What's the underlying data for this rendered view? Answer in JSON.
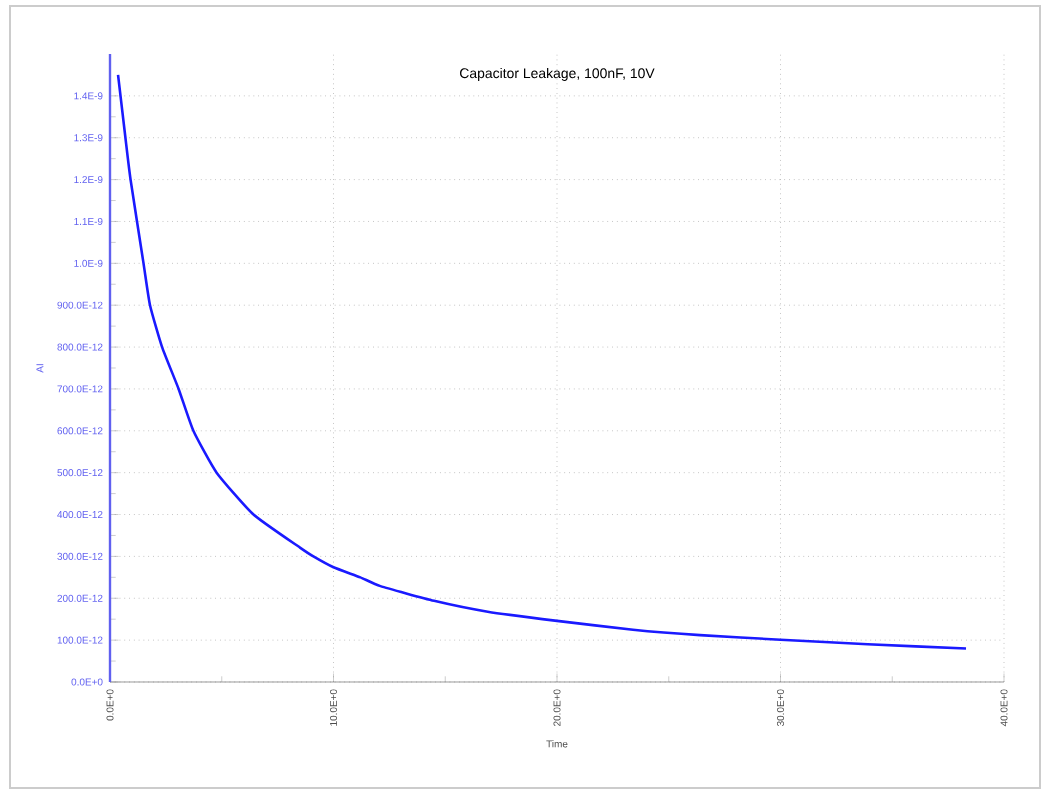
{
  "chart_data": {
    "type": "line",
    "title": "Capacitor Leakage, 100nF, 10V",
    "xlabel": "Time",
    "ylabel": "AI",
    "x": [
      0.36,
      0.69,
      0.92,
      1.5,
      1.79,
      2.33,
      3.07,
      3.73,
      4.77,
      6.42,
      8.5,
      9.1,
      10,
      11.2,
      12.1,
      14.5,
      16.9,
      20,
      23.4,
      26.4,
      30,
      33.9,
      38.3
    ],
    "series": [
      {
        "color": "#1a1aff",
        "values": [
          1.45e-09,
          1.3e-09,
          1.2e-09,
          1e-09,
          9e-10,
          8e-10,
          7e-10,
          6e-10,
          5e-10,
          4e-10,
          3.21e-10,
          3e-10,
          2.74e-10,
          2.5e-10,
          2.29e-10,
          1.94e-10,
          1.68e-10,
          1.46e-10,
          1.25e-10,
          1.12e-10,
          1.01e-10,
          9e-11,
          8e-11
        ]
      }
    ],
    "xlim": [
      0,
      40
    ],
    "ylim": [
      0,
      1.5e-09
    ],
    "xticks": [
      {
        "value": 0,
        "label": "0.0E+0"
      },
      {
        "value": 10,
        "label": "10.0E+0"
      },
      {
        "value": 20,
        "label": "20.0E+0"
      },
      {
        "value": 30,
        "label": "30.0E+0"
      },
      {
        "value": 40,
        "label": "40.0E+0"
      }
    ],
    "yticks": [
      {
        "value": 0,
        "label": "0.0E+0"
      },
      {
        "value": 1e-10,
        "label": "100.0E-12"
      },
      {
        "value": 2e-10,
        "label": "200.0E-12"
      },
      {
        "value": 3e-10,
        "label": "300.0E-12"
      },
      {
        "value": 4e-10,
        "label": "400.0E-12"
      },
      {
        "value": 5e-10,
        "label": "500.0E-12"
      },
      {
        "value": 6e-10,
        "label": "600.0E-12"
      },
      {
        "value": 7e-10,
        "label": "700.0E-12"
      },
      {
        "value": 8e-10,
        "label": "800.0E-12"
      },
      {
        "value": 9e-10,
        "label": "900.0E-12"
      },
      {
        "value": 1e-09,
        "label": "1.0E-9"
      },
      {
        "value": 1.1e-09,
        "label": "1.1E-9"
      },
      {
        "value": 1.2e-09,
        "label": "1.2E-9"
      },
      {
        "value": 1.3e-09,
        "label": "1.3E-9"
      },
      {
        "value": 1.4e-09,
        "label": "1.4E-9"
      }
    ],
    "grid": true
  }
}
